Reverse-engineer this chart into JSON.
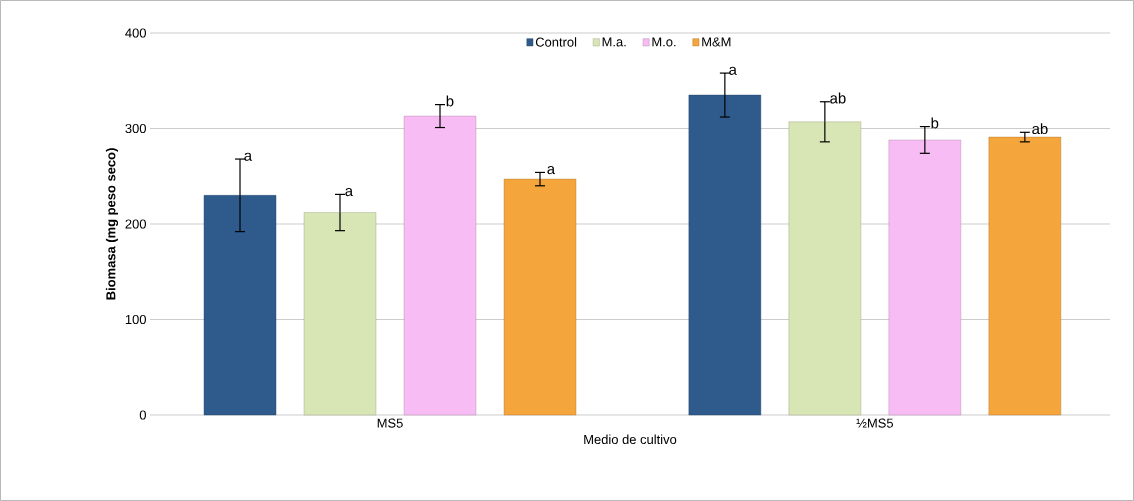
{
  "chart_data": {
    "type": "bar",
    "xlabel": "Medio de cultivo",
    "ylabel": "Biomasa (mg peso seco)",
    "categories": [
      "MS5",
      "½MS5"
    ],
    "series": [
      {
        "name": "Control",
        "color": "#2f5b8c",
        "values": [
          230,
          335
        ],
        "errors": [
          38,
          23
        ]
      },
      {
        "name": "M.a.",
        "color": "#d8e5b5",
        "values": [
          212,
          307
        ],
        "errors": [
          19,
          21
        ]
      },
      {
        "name": "M.o.",
        "color": "#f6bcf3",
        "values": [
          313,
          288
        ],
        "errors": [
          12,
          14
        ]
      },
      {
        "name": "M&M",
        "color": "#f4a53c",
        "values": [
          247,
          291
        ],
        "errors": [
          7,
          5
        ]
      }
    ],
    "ylim": [
      0,
      400
    ],
    "yticks": [
      0,
      100,
      200,
      300,
      400
    ],
    "grid": "y",
    "legend": "top",
    "annotations": [
      "a",
      "a",
      "b",
      "a",
      "a",
      "ab",
      "b",
      "ab"
    ]
  }
}
